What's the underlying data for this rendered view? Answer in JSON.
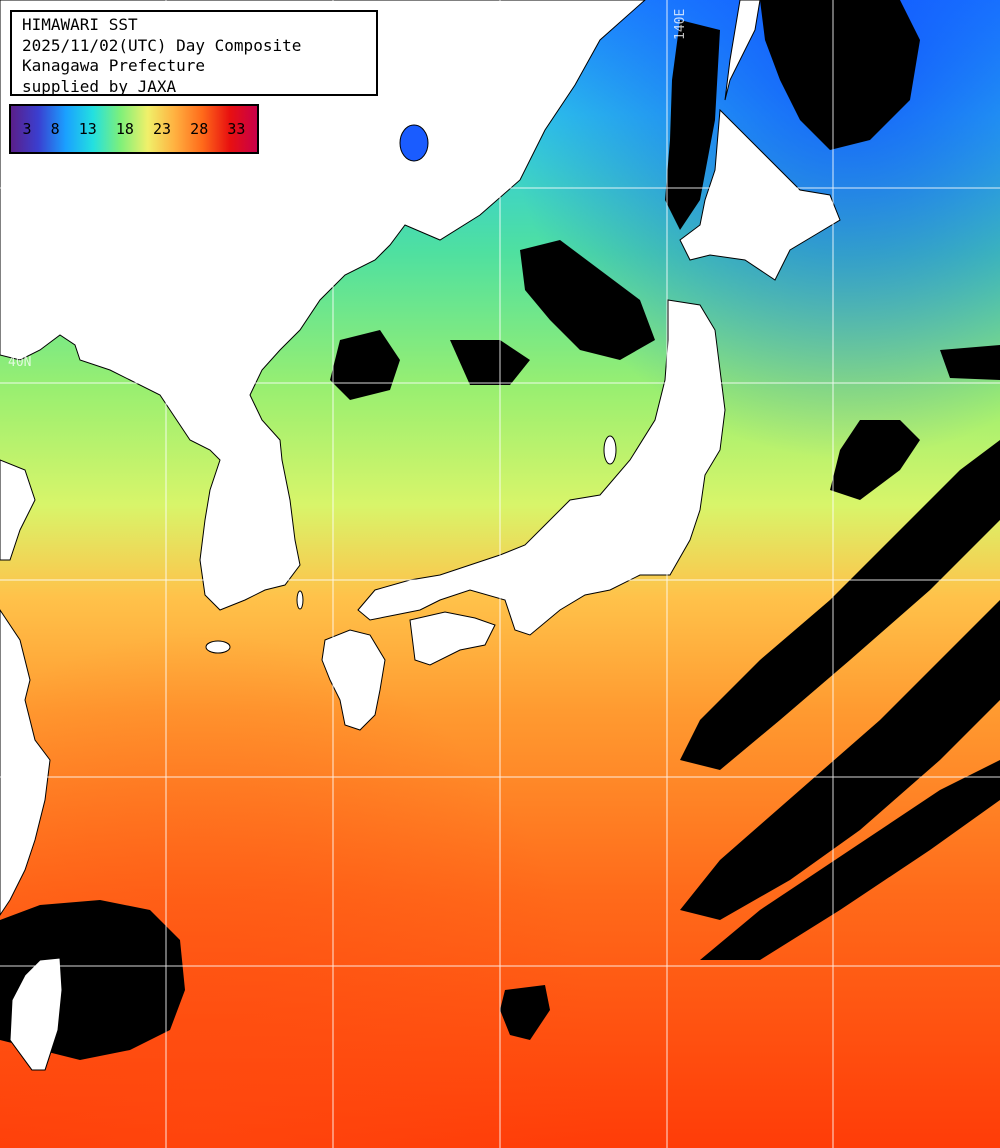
{
  "header": {
    "lines": [
      "HIMAWARI SST",
      "2025/11/02(UTC) Day Composite",
      "Kanagawa Prefecture",
      "supplied by JAXA"
    ]
  },
  "legend": {
    "ticks": [
      "3",
      "8",
      "13",
      "18",
      "23",
      "28",
      "33"
    ],
    "colors": [
      "#5a1f8a",
      "#3a3fd0",
      "#1aa0ff",
      "#23e0e0",
      "#7ef07a",
      "#f0f06a",
      "#ffb040",
      "#ff6a1a",
      "#e81010",
      "#c8004a"
    ]
  },
  "grid_labels": {
    "lon_label": "140E",
    "lat_label": "40N"
  },
  "map_colors": {
    "land": "#ffffff",
    "cloud": "#000000",
    "grid": "#ffffff"
  }
}
